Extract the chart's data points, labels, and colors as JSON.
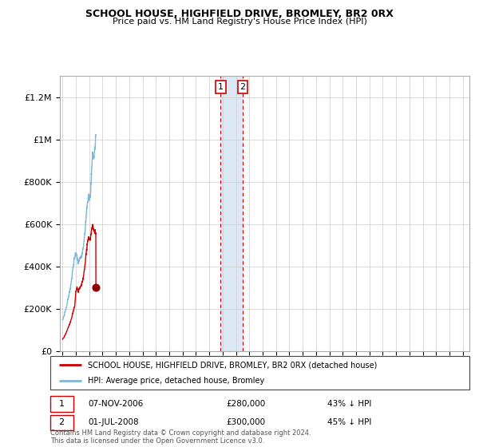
{
  "title": "SCHOOL HOUSE, HIGHFIELD DRIVE, BROMLEY, BR2 0RX",
  "subtitle": "Price paid vs. HM Land Registry's House Price Index (HPI)",
  "hpi_label": "HPI: Average price, detached house, Bromley",
  "property_label": "SCHOOL HOUSE, HIGHFIELD DRIVE, BROMLEY, BR2 0RX (detached house)",
  "footer": "Contains HM Land Registry data © Crown copyright and database right 2024.\nThis data is licensed under the Open Government Licence v3.0.",
  "sale1_date": "07-NOV-2006",
  "sale1_price": 280000,
  "sale1_hpi_pct": "43% ↓ HPI",
  "sale2_date": "01-JUL-2008",
  "sale2_price": 300000,
  "sale2_hpi_pct": "45% ↓ HPI",
  "hpi_color": "#7bb8d8",
  "property_color": "#cc0000",
  "shading_color": "#dce9f5",
  "grid_color": "#cccccc",
  "ylim": [
    0,
    1300000
  ],
  "yticks": [
    0,
    200000,
    400000,
    600000,
    800000,
    1000000,
    1200000
  ],
  "ytick_labels": [
    "£0",
    "£200K",
    "£400K",
    "£600K",
    "£800K",
    "£1M",
    "£1.2M"
  ],
  "sale1_x": 2006.85,
  "sale2_x": 2008.5,
  "xlim_left": 1994.8,
  "xlim_right": 2025.5,
  "hpi_annual": [
    145000,
    158000,
    178000,
    198000,
    218000,
    248000,
    270000,
    298000,
    335000,
    378000,
    415000,
    445000,
    460000,
    445000,
    415000,
    428000,
    440000,
    448000,
    468000,
    505000,
    558000,
    618000,
    685000,
    720000,
    728000,
    720000,
    832000,
    940000,
    900000,
    950000,
    1020000
  ],
  "prop_annual": [
    55000,
    62000,
    72000,
    84000,
    96000,
    110000,
    122000,
    136000,
    154000,
    175000,
    195000,
    215000,
    280000,
    300000,
    278000,
    292000,
    305000,
    310000,
    328000,
    360000,
    400000,
    448000,
    500000,
    530000,
    532000,
    525000,
    565000,
    595000,
    572000,
    568000,
    555000
  ]
}
